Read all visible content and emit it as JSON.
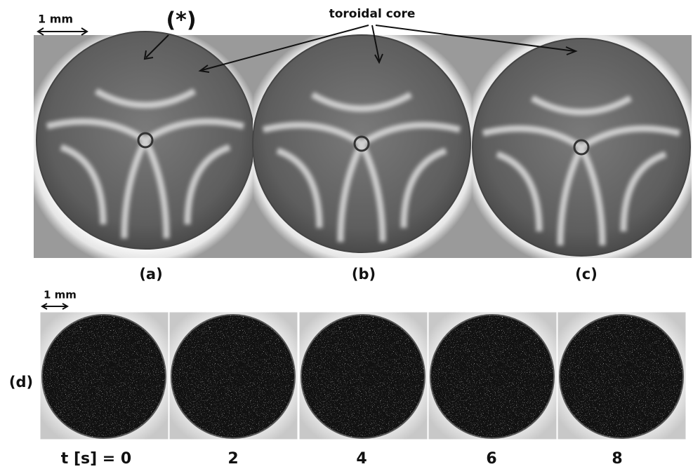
{
  "scale_top": "1 mm",
  "asterisk": "(*)",
  "toroidal_label": "toroidal core",
  "panels": [
    "(a)",
    "(b)",
    "(c)",
    "(d)"
  ],
  "scale_bottom": "1 mm",
  "times": [
    "t [s] = 0",
    "2",
    "4",
    "6",
    "8"
  ]
}
